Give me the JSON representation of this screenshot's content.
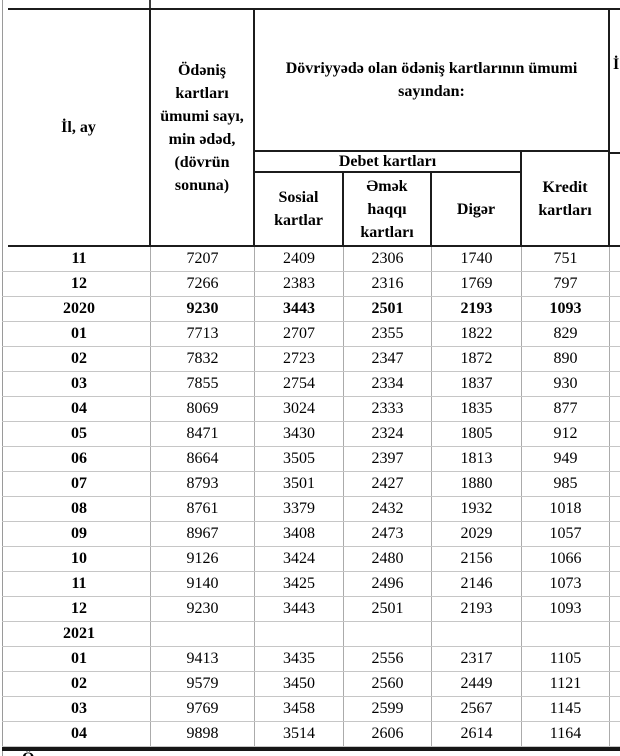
{
  "table": {
    "header": {
      "il_ay": "İl, ay",
      "total_cards": "Ödəniş kartları ümumi sayı, min ədəd, (dövrün sonuna)",
      "in_circulation": "Dövriyyədə olan ödəniş kartlarının ümumi sayından:",
      "debit_group": "Debet kartları",
      "social": "Sosial kartlar",
      "salary": "Əmək haqqı kartları",
      "other": "Digər",
      "credit": "Kredit kartları",
      "next_column_fragment": "İ"
    },
    "rows": [
      {
        "period": "11",
        "total": "7207",
        "social": "2409",
        "salary": "2306",
        "other": "1740",
        "credit": "751",
        "bold": false
      },
      {
        "period": "12",
        "total": "7266",
        "social": "2383",
        "salary": "2316",
        "other": "1769",
        "credit": "797",
        "bold": false
      },
      {
        "period": "2020",
        "total": "9230",
        "social": "3443",
        "salary": "2501",
        "other": "2193",
        "credit": "1093",
        "bold": true
      },
      {
        "period": "01",
        "total": "7713",
        "social": "2707",
        "salary": "2355",
        "other": "1822",
        "credit": "829",
        "bold": false
      },
      {
        "period": "02",
        "total": "7832",
        "social": "2723",
        "salary": "2347",
        "other": "1872",
        "credit": "890",
        "bold": false
      },
      {
        "period": "03",
        "total": "7855",
        "social": "2754",
        "salary": "2334",
        "other": "1837",
        "credit": "930",
        "bold": false
      },
      {
        "period": "04",
        "total": "8069",
        "social": "3024",
        "salary": "2333",
        "other": "1835",
        "credit": "877",
        "bold": false
      },
      {
        "period": "05",
        "total": "8471",
        "social": "3430",
        "salary": "2324",
        "other": "1805",
        "credit": "912",
        "bold": false
      },
      {
        "period": "06",
        "total": "8664",
        "social": "3505",
        "salary": "2397",
        "other": "1813",
        "credit": "949",
        "bold": false
      },
      {
        "period": "07",
        "total": "8793",
        "social": "3501",
        "salary": "2427",
        "other": "1880",
        "credit": "985",
        "bold": false
      },
      {
        "period": "08",
        "total": "8761",
        "social": "3379",
        "salary": "2432",
        "other": "1932",
        "credit": "1018",
        "bold": false
      },
      {
        "period": "09",
        "total": "8967",
        "social": "3408",
        "salary": "2473",
        "other": "2029",
        "credit": "1057",
        "bold": false
      },
      {
        "period": "10",
        "total": "9126",
        "social": "3424",
        "salary": "2480",
        "other": "2156",
        "credit": "1066",
        "bold": false
      },
      {
        "period": "11",
        "total": "9140",
        "social": "3425",
        "salary": "2496",
        "other": "2146",
        "credit": "1073",
        "bold": false
      },
      {
        "period": "12",
        "total": "9230",
        "social": "3443",
        "salary": "2501",
        "other": "2193",
        "credit": "1093",
        "bold": false
      },
      {
        "period": "2021",
        "total": "",
        "social": "",
        "salary": "",
        "other": "",
        "credit": "",
        "bold": true
      },
      {
        "period": "01",
        "total": "9413",
        "social": "3435",
        "salary": "2556",
        "other": "2317",
        "credit": "1105",
        "bold": false
      },
      {
        "period": "02",
        "total": "9579",
        "social": "3450",
        "salary": "2560",
        "other": "2449",
        "credit": "1121",
        "bold": false
      },
      {
        "period": "03",
        "total": "9769",
        "social": "3458",
        "salary": "2599",
        "other": "2567",
        "credit": "1145",
        "bold": false
      },
      {
        "period": "04",
        "total": "9898",
        "social": "3514",
        "salary": "2606",
        "other": "2614",
        "credit": "1164",
        "bold": false
      }
    ],
    "footer_fragment": "Ö"
  },
  "colors": {
    "header_border": "#1c1c1c",
    "grid_horizontal": "#c6c6c6",
    "grid_vertical": "#ababab",
    "text": "#000000",
    "background": "#ffffff"
  }
}
